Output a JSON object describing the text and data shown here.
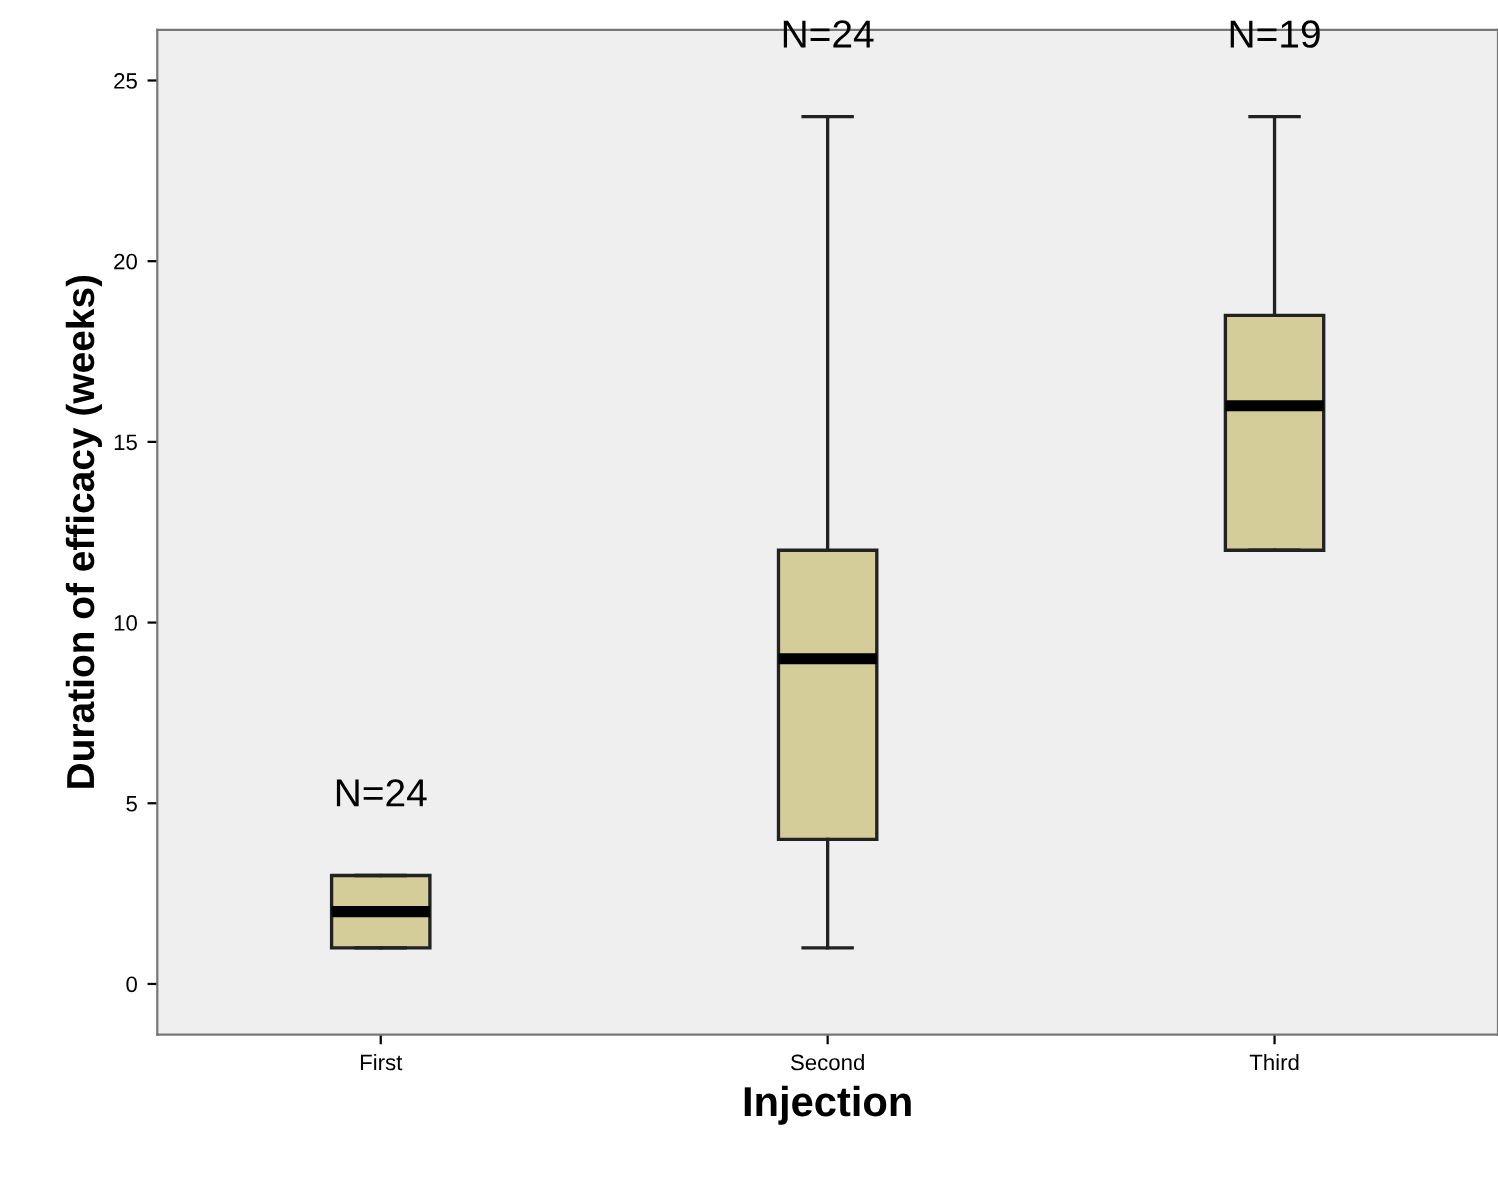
{
  "chart_data": {
    "type": "box",
    "xlabel": "Injection",
    "ylabel": "Duration of efficacy (weeks)",
    "categories": [
      "First",
      "Second",
      "Third"
    ],
    "boxes": [
      {
        "low": 1,
        "q1": 1,
        "median": 2,
        "q3": 3,
        "high": 3
      },
      {
        "low": 1,
        "q1": 4,
        "median": 9,
        "q3": 12,
        "high": 24
      },
      {
        "low": 12,
        "q1": 12,
        "median": 16,
        "q3": 18.5,
        "high": 24
      }
    ],
    "color": "#d4cd9a",
    "ylim": [
      -1.4,
      26.4
    ],
    "yticks": [
      0,
      5,
      10,
      15,
      20,
      25
    ],
    "grid": false,
    "annotations": [
      "N=24",
      "N=24",
      "N=19"
    ]
  }
}
